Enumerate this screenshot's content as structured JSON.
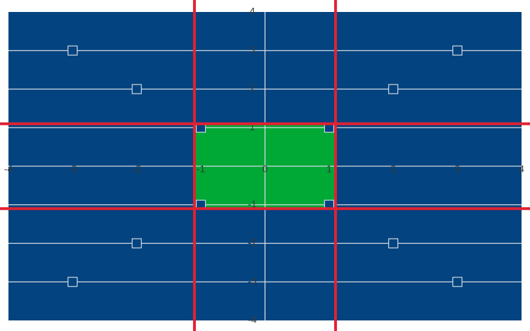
{
  "chart_data": {
    "type": "scatter",
    "title": "",
    "xlabel": "",
    "ylabel": "",
    "xlim": [
      -4,
      4
    ],
    "ylim": [
      -4,
      4
    ],
    "grid": true,
    "x_ticks": [
      -4,
      -3,
      -2,
      -1,
      0,
      1,
      2,
      3,
      4
    ],
    "y_ticks": [
      -4,
      -3,
      -2,
      -1,
      0,
      1,
      2,
      3,
      4
    ],
    "x_tick_labels": [
      "-4",
      "-3",
      "-2",
      "-1",
      "0",
      "1",
      "2",
      "3",
      "4"
    ],
    "y_tick_labels": [
      "-4",
      "-3",
      "-2",
      "-1",
      "0",
      "1",
      "2",
      "3",
      "4"
    ],
    "highlight_region": {
      "x": [
        -1.1,
        1.1
      ],
      "y": [
        -1.1,
        1.1
      ],
      "color": "#00a835"
    },
    "boundary_lines": {
      "x": [
        -1.1,
        1.1
      ],
      "y": [
        -1.1,
        1.1
      ],
      "color": "#e02232"
    },
    "series": [
      {
        "marker": "square",
        "x": [
          -3,
          3,
          -2,
          2,
          -1,
          1,
          -1,
          1,
          -2,
          2,
          -3,
          3
        ],
        "y": [
          3,
          3,
          2,
          2,
          1,
          1,
          -1,
          -1,
          -2,
          -2,
          -3,
          -3
        ]
      }
    ],
    "colors": {
      "plot_background": "#03437f",
      "grid": "#d6dce4",
      "marker_fill": "#03437f",
      "marker_stroke": "#cfd8e3"
    }
  }
}
